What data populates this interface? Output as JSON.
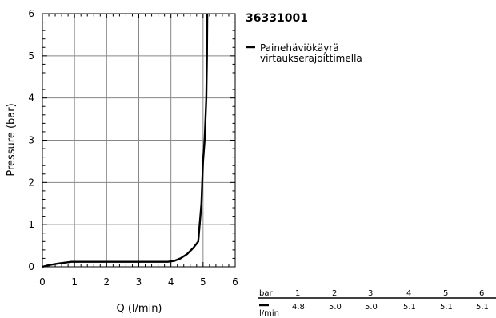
{
  "chart_data": {
    "type": "line",
    "title": "36331001",
    "xlabel": "Q (l/min)",
    "ylabel": "Pressure (bar)",
    "xlim": [
      0,
      6
    ],
    "ylim": [
      0,
      6
    ],
    "xticks": [
      "0",
      "1",
      "2",
      "3",
      "4",
      "5",
      "6"
    ],
    "yticks": [
      "0",
      "1",
      "2",
      "3",
      "4",
      "5",
      "6"
    ],
    "grid": true,
    "legend_position": "right",
    "series": [
      {
        "name": "Painehäviökäyrä virtauksera­joittimella",
        "legend_lines": [
          "Painehäviökäyrä",
          "virtaukserajoittimella"
        ],
        "color": "#000000",
        "x": [
          0.0,
          0.2,
          0.5,
          0.9,
          1.0,
          2.0,
          3.0,
          3.9,
          4.1,
          4.3,
          4.5,
          4.7,
          4.85,
          4.95,
          5.0,
          5.05,
          5.1,
          5.12,
          5.13
        ],
        "y": [
          0.0,
          0.04,
          0.08,
          0.12,
          0.12,
          0.12,
          0.12,
          0.12,
          0.14,
          0.2,
          0.3,
          0.45,
          0.6,
          1.5,
          2.5,
          3.0,
          4.0,
          5.0,
          6.0
        ]
      }
    ],
    "table": {
      "header_label": "bar",
      "header_values": [
        "1",
        "2",
        "3",
        "4",
        "5",
        "6"
      ],
      "row_label": "l/min",
      "row_values": [
        "4.8",
        "5.0",
        "5.0",
        "5.1",
        "5.1",
        "5.1"
      ]
    }
  }
}
